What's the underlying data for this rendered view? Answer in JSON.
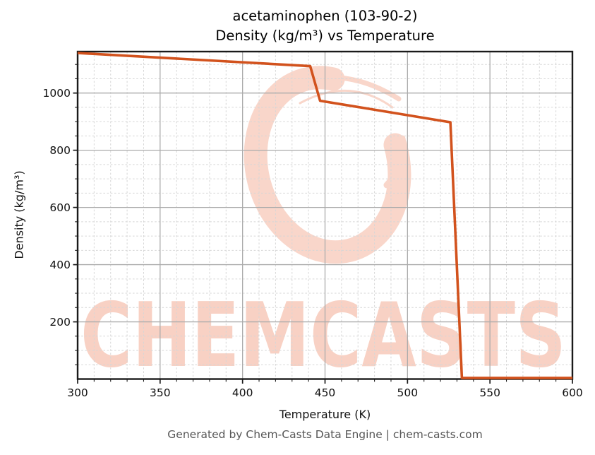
{
  "title": {
    "line1": "acetaminophen (103-90-2)",
    "line2": "Density (kg/m³) vs Temperature"
  },
  "footer": "Generated by Chem-Casts Data Engine | chem-casts.com",
  "watermark": {
    "text": "CHEMCASTS",
    "logo": "chemcasts-swirl-logo",
    "text_color": "#f8d1c4",
    "logo_color": "#f9d6ca"
  },
  "colors": {
    "line": "#d2521d",
    "grid_major": "#ababab",
    "grid_minor": "#d6d6d6",
    "spine": "#1a1a1a",
    "text": "#111111",
    "footer_text": "#575757"
  },
  "chart_data": {
    "type": "line",
    "title": "acetaminophen (103-90-2)\nDensity (kg/m³) vs Temperature",
    "xlabel": "Temperature (K)",
    "ylabel": "Density (kg/m³)",
    "xlim": [
      300,
      600
    ],
    "ylim": [
      0,
      1145
    ],
    "x_major_ticks": [
      300,
      350,
      400,
      450,
      500,
      550,
      600
    ],
    "y_major_ticks": [
      200,
      400,
      600,
      800,
      1000
    ],
    "x_minor_step": 10,
    "y_minor_step": 50,
    "grid": {
      "major": true,
      "minor": true,
      "minor_style": "dashed"
    },
    "legend": "none",
    "series": [
      {
        "name": "Density",
        "color": "#d2521d",
        "points": [
          [
            300,
            1140
          ],
          [
            441,
            1094
          ],
          [
            447,
            973
          ],
          [
            526,
            898
          ],
          [
            533,
            4
          ],
          [
            600,
            4
          ]
        ]
      }
    ]
  }
}
